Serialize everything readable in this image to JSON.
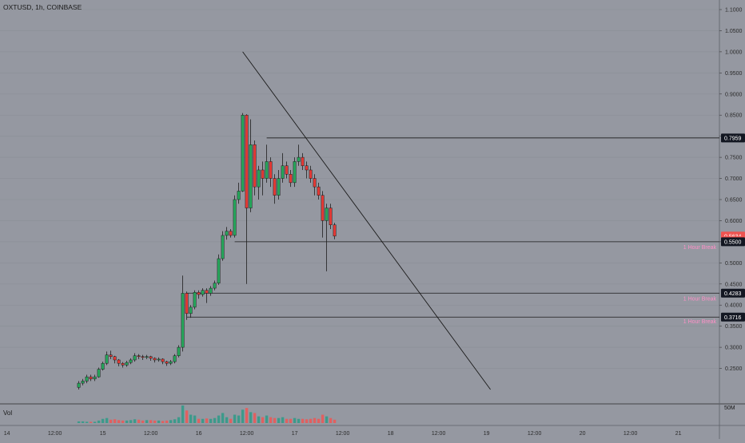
{
  "header": {
    "symbol_line": "OXTUSD, 1h, COINBASE"
  },
  "volume_panel": {
    "label": "Vol",
    "axis_label": "50M"
  },
  "colors": {
    "background": "#9598a1",
    "up": "#26a65b",
    "down": "#e53935",
    "line": "#1a1a1a",
    "vol_up": "#3d9a8b",
    "vol_down": "#e06060",
    "pink_label": "#ff8fc7"
  },
  "chart_data": {
    "type": "candlestick",
    "title": "OXTUSD, 1h, COINBASE",
    "y_range": [
      0.2,
      1.1
    ],
    "y_ticks": [
      "1.1000",
      "1.0500",
      "1.0000",
      "0.9500",
      "0.9000",
      "0.8500",
      "0.8000",
      "0.7500",
      "0.7000",
      "0.6500",
      "0.6000",
      "0.5500",
      "0.5000",
      "0.4500",
      "0.4000",
      "0.3500",
      "0.3000",
      "0.2500"
    ],
    "x_ticks": [
      "14",
      "12:00",
      "15",
      "12:00",
      "16",
      "12:00",
      "17",
      "12:00",
      "18",
      "12:00",
      "19",
      "12:00",
      "20",
      "12:00",
      "21"
    ],
    "price_badges": [
      {
        "label": "0.7959",
        "value": 0.7959,
        "style": "black"
      },
      {
        "label": "0.5634",
        "value": 0.5634,
        "style": "red"
      },
      {
        "label": "38:01",
        "value": 0.5525,
        "style": "red"
      },
      {
        "label": "0.5500",
        "value": 0.55,
        "style": "black"
      },
      {
        "label": "0.4283",
        "value": 0.4283,
        "style": "black"
      },
      {
        "label": "0.3716",
        "value": 0.3716,
        "style": "black"
      }
    ],
    "annotations": [
      {
        "text": "1 Hour Break",
        "value": 0.5375
      },
      {
        "text": "1 Hour Break",
        "value": 0.416
      },
      {
        "text": "1 Hour Break",
        "value": 0.362
      }
    ],
    "horizontal_lines": [
      {
        "value": 0.7959,
        "x_start_hours": 65
      },
      {
        "value": 0.55,
        "x_start_hours": 57
      },
      {
        "value": 0.4283,
        "x_start_hours": 45
      },
      {
        "value": 0.3716,
        "x_start_hours": 45
      }
    ],
    "trend_line": {
      "from": {
        "hours": 59,
        "value": 1.0
      },
      "to": {
        "hours": 121,
        "value": 0.2
      }
    },
    "candles": [
      [
        18,
        0.205,
        0.215,
        0.22,
        0.2
      ],
      [
        19,
        0.215,
        0.22,
        0.225,
        0.21
      ],
      [
        20,
        0.22,
        0.23,
        0.235,
        0.215
      ],
      [
        21,
        0.23,
        0.225,
        0.235,
        0.22
      ],
      [
        22,
        0.225,
        0.23,
        0.235,
        0.22
      ],
      [
        23,
        0.23,
        0.248,
        0.252,
        0.228
      ],
      [
        24,
        0.248,
        0.262,
        0.266,
        0.245
      ],
      [
        25,
        0.262,
        0.282,
        0.29,
        0.258
      ],
      [
        26,
        0.282,
        0.278,
        0.292,
        0.272
      ],
      [
        27,
        0.278,
        0.27,
        0.28,
        0.262
      ],
      [
        28,
        0.27,
        0.262,
        0.272,
        0.255
      ],
      [
        29,
        0.262,
        0.258,
        0.265,
        0.252
      ],
      [
        30,
        0.258,
        0.264,
        0.268,
        0.254
      ],
      [
        31,
        0.264,
        0.27,
        0.274,
        0.26
      ],
      [
        32,
        0.27,
        0.28,
        0.286,
        0.266
      ],
      [
        33,
        0.28,
        0.278,
        0.284,
        0.272
      ],
      [
        34,
        0.278,
        0.276,
        0.282,
        0.27
      ],
      [
        35,
        0.276,
        0.278,
        0.282,
        0.272
      ],
      [
        36,
        0.278,
        0.274,
        0.28,
        0.268
      ],
      [
        37,
        0.274,
        0.27,
        0.276,
        0.264
      ],
      [
        38,
        0.27,
        0.272,
        0.276,
        0.266
      ],
      [
        39,
        0.272,
        0.266,
        0.274,
        0.26
      ],
      [
        40,
        0.266,
        0.262,
        0.268,
        0.256
      ],
      [
        41,
        0.262,
        0.266,
        0.27,
        0.258
      ],
      [
        42,
        0.266,
        0.28,
        0.284,
        0.262
      ],
      [
        43,
        0.28,
        0.3,
        0.305,
        0.276
      ],
      [
        44,
        0.3,
        0.428,
        0.47,
        0.29
      ],
      [
        45,
        0.428,
        0.38,
        0.432,
        0.365
      ],
      [
        46,
        0.38,
        0.395,
        0.4,
        0.37
      ],
      [
        47,
        0.395,
        0.43,
        0.435,
        0.39
      ],
      [
        48,
        0.43,
        0.425,
        0.435,
        0.415
      ],
      [
        49,
        0.425,
        0.435,
        0.44,
        0.42
      ],
      [
        50,
        0.435,
        0.428,
        0.44,
        0.405
      ],
      [
        51,
        0.428,
        0.44,
        0.445,
        0.422
      ],
      [
        52,
        0.44,
        0.452,
        0.458,
        0.435
      ],
      [
        53,
        0.452,
        0.51,
        0.52,
        0.448
      ],
      [
        54,
        0.51,
        0.565,
        0.575,
        0.505
      ],
      [
        55,
        0.565,
        0.575,
        0.585,
        0.555
      ],
      [
        56,
        0.575,
        0.565,
        0.58,
        0.56
      ],
      [
        57,
        0.565,
        0.65,
        0.66,
        0.56
      ],
      [
        58,
        0.65,
        0.67,
        0.69,
        0.64
      ],
      [
        59,
        0.67,
        0.85,
        0.855,
        0.668
      ],
      [
        60,
        0.85,
        0.63,
        0.852,
        0.45
      ],
      [
        61,
        0.63,
        0.78,
        0.84,
        0.62
      ],
      [
        62,
        0.78,
        0.68,
        0.79,
        0.66
      ],
      [
        63,
        0.68,
        0.72,
        0.73,
        0.65
      ],
      [
        64,
        0.72,
        0.7,
        0.74,
        0.66
      ],
      [
        65,
        0.7,
        0.74,
        0.78,
        0.69
      ],
      [
        66,
        0.74,
        0.7,
        0.75,
        0.68
      ],
      [
        67,
        0.7,
        0.66,
        0.71,
        0.64
      ],
      [
        68,
        0.66,
        0.7,
        0.72,
        0.65
      ],
      [
        69,
        0.7,
        0.73,
        0.76,
        0.69
      ],
      [
        70,
        0.73,
        0.71,
        0.74,
        0.7
      ],
      [
        71,
        0.71,
        0.69,
        0.72,
        0.68
      ],
      [
        72,
        0.69,
        0.74,
        0.75,
        0.68
      ],
      [
        73,
        0.74,
        0.75,
        0.78,
        0.73
      ],
      [
        74,
        0.75,
        0.73,
        0.76,
        0.72
      ],
      [
        75,
        0.73,
        0.72,
        0.74,
        0.7
      ],
      [
        76,
        0.72,
        0.7,
        0.73,
        0.69
      ],
      [
        77,
        0.7,
        0.68,
        0.71,
        0.66
      ],
      [
        78,
        0.68,
        0.66,
        0.69,
        0.65
      ],
      [
        79,
        0.66,
        0.6,
        0.67,
        0.56
      ],
      [
        80,
        0.6,
        0.63,
        0.64,
        0.48
      ],
      [
        81,
        0.63,
        0.59,
        0.64,
        0.58
      ],
      [
        82,
        0.59,
        0.5634,
        0.595,
        0.556
      ]
    ],
    "volumes": [
      [
        18,
        4,
        1
      ],
      [
        19,
        4,
        1
      ],
      [
        20,
        3,
        1
      ],
      [
        21,
        3,
        0
      ],
      [
        22,
        3,
        1
      ],
      [
        23,
        6,
        1
      ],
      [
        24,
        10,
        1
      ],
      [
        25,
        12,
        1
      ],
      [
        26,
        8,
        0
      ],
      [
        27,
        9,
        0
      ],
      [
        28,
        7,
        0
      ],
      [
        29,
        6,
        0
      ],
      [
        30,
        6,
        1
      ],
      [
        31,
        7,
        1
      ],
      [
        32,
        9,
        1
      ],
      [
        33,
        8,
        0
      ],
      [
        34,
        6,
        0
      ],
      [
        35,
        7,
        1
      ],
      [
        36,
        7,
        0
      ],
      [
        37,
        6,
        0
      ],
      [
        38,
        6,
        1
      ],
      [
        39,
        5,
        0
      ],
      [
        40,
        6,
        0
      ],
      [
        41,
        7,
        1
      ],
      [
        42,
        9,
        1
      ],
      [
        43,
        14,
        1
      ],
      [
        44,
        42,
        1
      ],
      [
        45,
        30,
        0
      ],
      [
        46,
        20,
        1
      ],
      [
        47,
        18,
        1
      ],
      [
        48,
        10,
        0
      ],
      [
        49,
        10,
        1
      ],
      [
        50,
        11,
        0
      ],
      [
        51,
        10,
        1
      ],
      [
        52,
        12,
        1
      ],
      [
        53,
        18,
        1
      ],
      [
        54,
        24,
        1
      ],
      [
        55,
        14,
        1
      ],
      [
        56,
        10,
        0
      ],
      [
        57,
        20,
        1
      ],
      [
        58,
        18,
        1
      ],
      [
        59,
        32,
        1
      ],
      [
        60,
        36,
        0
      ],
      [
        61,
        26,
        1
      ],
      [
        62,
        24,
        0
      ],
      [
        63,
        16,
        1
      ],
      [
        64,
        14,
        0
      ],
      [
        65,
        18,
        1
      ],
      [
        66,
        14,
        0
      ],
      [
        67,
        12,
        0
      ],
      [
        68,
        12,
        1
      ],
      [
        69,
        14,
        1
      ],
      [
        70,
        10,
        0
      ],
      [
        71,
        10,
        0
      ],
      [
        72,
        12,
        1
      ],
      [
        73,
        10,
        1
      ],
      [
        74,
        10,
        0
      ],
      [
        75,
        9,
        0
      ],
      [
        76,
        10,
        0
      ],
      [
        77,
        12,
        0
      ],
      [
        78,
        10,
        0
      ],
      [
        79,
        20,
        0
      ],
      [
        80,
        16,
        1
      ],
      [
        81,
        12,
        0
      ],
      [
        82,
        8,
        0
      ]
    ]
  }
}
